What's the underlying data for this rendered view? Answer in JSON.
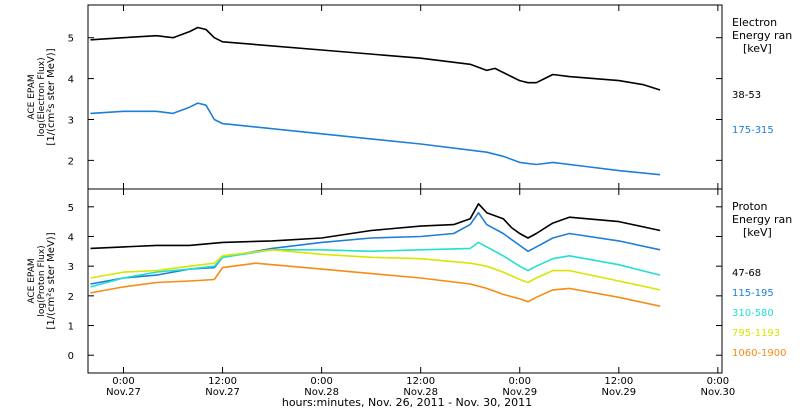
{
  "chart_data": [
    {
      "type": "line",
      "ylabel_lines": [
        "ACE EPAM",
        "log(Electron Flux)",
        "[1/(cm²s ster MeV)]"
      ],
      "ylim": [
        1.3,
        5.8
      ],
      "yticks": [
        2,
        3,
        4,
        5
      ],
      "legend_title": [
        "Electron",
        "Energy ran",
        "[keV]"
      ],
      "series": [
        {
          "name": "38-53",
          "color": "#000000",
          "points": [
            [
              -4,
              4.95
            ],
            [
              0,
              5.0
            ],
            [
              4,
              5.05
            ],
            [
              6,
              5.0
            ],
            [
              8,
              5.15
            ],
            [
              9,
              5.25
            ],
            [
              10,
              5.2
            ],
            [
              11,
              5.0
            ],
            [
              12,
              4.9
            ],
            [
              24,
              4.7
            ],
            [
              36,
              4.5
            ],
            [
              42,
              4.35
            ],
            [
              44,
              4.2
            ],
            [
              45,
              4.25
            ],
            [
              46,
              4.15
            ],
            [
              47,
              4.05
            ],
            [
              48,
              3.95
            ],
            [
              49,
              3.9
            ],
            [
              50,
              3.9
            ],
            [
              51,
              4.0
            ],
            [
              52,
              4.1
            ],
            [
              54,
              4.05
            ],
            [
              60,
              3.95
            ],
            [
              63,
              3.85
            ],
            [
              65,
              3.72
            ]
          ]
        },
        {
          "name": "175-315",
          "color": "#1f7fd6",
          "points": [
            [
              -4,
              3.15
            ],
            [
              0,
              3.2
            ],
            [
              4,
              3.2
            ],
            [
              6,
              3.15
            ],
            [
              8,
              3.3
            ],
            [
              9,
              3.4
            ],
            [
              10,
              3.35
            ],
            [
              11,
              3.0
            ],
            [
              12,
              2.9
            ],
            [
              24,
              2.65
            ],
            [
              36,
              2.4
            ],
            [
              44,
              2.2
            ],
            [
              46,
              2.1
            ],
            [
              48,
              1.95
            ],
            [
              50,
              1.9
            ],
            [
              52,
              1.95
            ],
            [
              56,
              1.85
            ],
            [
              60,
              1.75
            ],
            [
              65,
              1.65
            ]
          ]
        }
      ]
    },
    {
      "type": "line",
      "ylabel_lines": [
        "ACE EPAM",
        "log(Proton Flux)",
        "[1/(cm²s ster MeV)]"
      ],
      "ylim": [
        -0.6,
        5.6
      ],
      "yticks": [
        0,
        1,
        2,
        3,
        4,
        5
      ],
      "legend_title": [
        "Proton",
        "Energy ran",
        "[keV]"
      ],
      "series": [
        {
          "name": "47-68",
          "color": "#000000",
          "points": [
            [
              -4,
              3.6
            ],
            [
              0,
              3.65
            ],
            [
              4,
              3.7
            ],
            [
              8,
              3.7
            ],
            [
              12,
              3.8
            ],
            [
              18,
              3.85
            ],
            [
              24,
              3.95
            ],
            [
              30,
              4.2
            ],
            [
              36,
              4.35
            ],
            [
              40,
              4.4
            ],
            [
              42,
              4.6
            ],
            [
              43,
              5.1
            ],
            [
              44,
              4.8
            ],
            [
              46,
              4.6
            ],
            [
              47,
              4.3
            ],
            [
              48,
              4.1
            ],
            [
              49,
              3.95
            ],
            [
              50,
              4.1
            ],
            [
              52,
              4.45
            ],
            [
              54,
              4.65
            ],
            [
              60,
              4.5
            ],
            [
              65,
              4.2
            ]
          ]
        },
        {
          "name": "115-195",
          "color": "#1f7fd6",
          "points": [
            [
              -4,
              2.4
            ],
            [
              0,
              2.6
            ],
            [
              4,
              2.7
            ],
            [
              8,
              2.9
            ],
            [
              11,
              2.95
            ],
            [
              12,
              3.3
            ],
            [
              18,
              3.6
            ],
            [
              24,
              3.8
            ],
            [
              30,
              3.95
            ],
            [
              36,
              4.0
            ],
            [
              40,
              4.1
            ],
            [
              42,
              4.4
            ],
            [
              43,
              4.8
            ],
            [
              44,
              4.4
            ],
            [
              46,
              4.1
            ],
            [
              48,
              3.7
            ],
            [
              49,
              3.5
            ],
            [
              50,
              3.65
            ],
            [
              52,
              3.95
            ],
            [
              54,
              4.1
            ],
            [
              60,
              3.85
            ],
            [
              65,
              3.55
            ]
          ]
        },
        {
          "name": "310-580",
          "color": "#22e0d0",
          "points": [
            [
              -4,
              2.3
            ],
            [
              0,
              2.6
            ],
            [
              4,
              2.8
            ],
            [
              8,
              2.9
            ],
            [
              11,
              3.0
            ],
            [
              12,
              3.3
            ],
            [
              18,
              3.55
            ],
            [
              24,
              3.55
            ],
            [
              30,
              3.5
            ],
            [
              36,
              3.55
            ],
            [
              42,
              3.6
            ],
            [
              43,
              3.8
            ],
            [
              46,
              3.35
            ],
            [
              48,
              3.0
            ],
            [
              49,
              2.85
            ],
            [
              50,
              3.0
            ],
            [
              52,
              3.25
            ],
            [
              54,
              3.35
            ],
            [
              60,
              3.05
            ],
            [
              65,
              2.7
            ]
          ]
        },
        {
          "name": "795-1193",
          "color": "#d8e600",
          "points": [
            [
              -4,
              2.6
            ],
            [
              0,
              2.8
            ],
            [
              4,
              2.85
            ],
            [
              8,
              3.0
            ],
            [
              11,
              3.1
            ],
            [
              12,
              3.35
            ],
            [
              18,
              3.55
            ],
            [
              24,
              3.4
            ],
            [
              30,
              3.3
            ],
            [
              36,
              3.25
            ],
            [
              42,
              3.1
            ],
            [
              44,
              3.0
            ],
            [
              46,
              2.8
            ],
            [
              48,
              2.55
            ],
            [
              49,
              2.45
            ],
            [
              50,
              2.6
            ],
            [
              52,
              2.85
            ],
            [
              54,
              2.85
            ],
            [
              60,
              2.5
            ],
            [
              65,
              2.2
            ]
          ]
        },
        {
          "name": "1060-1900",
          "color": "#f58c14",
          "points": [
            [
              -4,
              2.1
            ],
            [
              0,
              2.3
            ],
            [
              4,
              2.45
            ],
            [
              8,
              2.5
            ],
            [
              11,
              2.55
            ],
            [
              12,
              2.95
            ],
            [
              16,
              3.1
            ],
            [
              24,
              2.9
            ],
            [
              30,
              2.75
            ],
            [
              36,
              2.6
            ],
            [
              42,
              2.4
            ],
            [
              44,
              2.25
            ],
            [
              46,
              2.05
            ],
            [
              48,
              1.9
            ],
            [
              49,
              1.8
            ],
            [
              50,
              1.95
            ],
            [
              52,
              2.2
            ],
            [
              54,
              2.25
            ],
            [
              60,
              1.95
            ],
            [
              65,
              1.65
            ]
          ]
        }
      ]
    }
  ],
  "xaxis": {
    "xlim": [
      -4.3,
      72.5
    ],
    "ticks": [
      {
        "hours": 0,
        "time": "0:00",
        "date": "Nov.27"
      },
      {
        "hours": 12,
        "time": "12:00",
        "date": "Nov.27"
      },
      {
        "hours": 24,
        "time": "0:00",
        "date": "Nov.28"
      },
      {
        "hours": 36,
        "time": "12:00",
        "date": "Nov.28"
      },
      {
        "hours": 48,
        "time": "0:00",
        "date": "Nov.29"
      },
      {
        "hours": 60,
        "time": "12:00",
        "date": "Nov.29"
      },
      {
        "hours": 72,
        "time": "0:00",
        "date": "Nov.30"
      }
    ],
    "xlabel": "hours:minutes, Nov. 26, 2011 - Nov. 30, 2011"
  }
}
